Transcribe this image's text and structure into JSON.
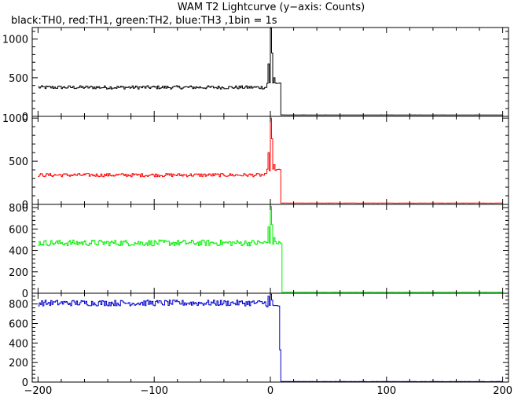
{
  "chart_data": {
    "type": "line",
    "title": "WAM T2 Lightcurve (y−axis: Counts)",
    "subtitle": "black:TH0, red:TH1, green:TH2, blue:TH3 ,1bin = 1s",
    "xlim": [
      -205,
      205
    ],
    "x_ticks": [
      -200,
      -100,
      0,
      100,
      200
    ],
    "x_tick_labels": [
      "−200",
      "−100",
      "0",
      "100",
      "200"
    ],
    "panels": [
      {
        "name": "TH0",
        "color": "#000000",
        "ylim": [
          0,
          1150
        ],
        "y_ticks": [
          0,
          500,
          1000
        ],
        "y_tick_labels": [
          "0",
          "500",
          "1000"
        ],
        "baseline": 375,
        "noise": 22,
        "peaks": [
          {
            "x": -2,
            "y": 680
          },
          {
            "x": 0,
            "y": 1140
          },
          {
            "x": 1,
            "y": 820
          },
          {
            "x": 3,
            "y": 500
          }
        ],
        "after_drop": 430,
        "after_t": 8,
        "background": 18
      },
      {
        "name": "TH1",
        "color": "#ff0000",
        "ylim": [
          0,
          1020
        ],
        "y_ticks": [
          0,
          500,
          1000
        ],
        "y_tick_labels": [
          "0",
          "500",
          "1000"
        ],
        "baseline": 340,
        "noise": 20,
        "peaks": [
          {
            "x": -2,
            "y": 600
          },
          {
            "x": 0,
            "y": 1000
          },
          {
            "x": 1,
            "y": 760
          },
          {
            "x": 3,
            "y": 460
          }
        ],
        "after_drop": 400,
        "after_t": 8,
        "background": 15
      },
      {
        "name": "TH2",
        "color": "#00ee00",
        "ylim": [
          0,
          830
        ],
        "y_ticks": [
          0,
          200,
          400,
          600,
          800
        ],
        "y_tick_labels": [
          "0",
          "200",
          "400",
          "600",
          "800"
        ],
        "baseline": 470,
        "noise": 28,
        "peaks": [
          {
            "x": -2,
            "y": 620
          },
          {
            "x": 0,
            "y": 810
          },
          {
            "x": 1,
            "y": 640
          },
          {
            "x": 3,
            "y": 520
          }
        ],
        "after_drop": 470,
        "after_t": 9,
        "background": 10
      },
      {
        "name": "TH3",
        "color": "#0000cc",
        "ylim": [
          0,
          910
        ],
        "y_ticks": [
          0,
          200,
          400,
          600,
          800
        ],
        "y_tick_labels": [
          "0",
          "200",
          "400",
          "600",
          "800"
        ],
        "baseline": 810,
        "noise": 30,
        "peaks": [
          {
            "x": -2,
            "y": 880
          },
          {
            "x": 0,
            "y": 900
          },
          {
            "x": 1,
            "y": 840
          }
        ],
        "after_drop": 780,
        "after_t": 8,
        "tail": [
          {
            "x": 8,
            "y": 330
          },
          {
            "x": 9,
            "y": 300
          }
        ],
        "background": 5
      }
    ]
  }
}
